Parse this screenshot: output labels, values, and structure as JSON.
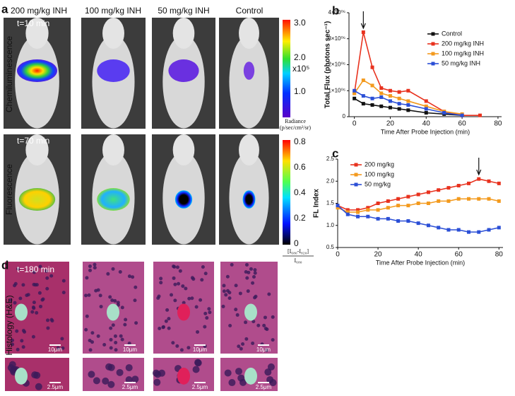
{
  "panel_labels": [
    "a",
    "b",
    "c",
    "d"
  ],
  "columns": [
    "200 mg/kg INH",
    "100 mg/kg INH",
    "50 mg/kg INH",
    "Control"
  ],
  "rows": [
    "Chemiluminescence",
    "Fluorescence",
    "Histology (H&E)"
  ],
  "time_labels": [
    "t=10 min",
    "t=70 min",
    "t=180 min"
  ],
  "radiance_scale": {
    "labels": [
      "3.0",
      "2.0",
      "1.0"
    ],
    "multiplier": "x10⁵",
    "unit": "Radiance",
    "unit_detail": "(p/sec/cm²/sr)"
  },
  "fluorescence_scale": {
    "labels": [
      "0.8",
      "0.6",
      "0.4",
      "0.2",
      "0"
    ],
    "numerator": "[I₆₈₀-I₈₂₀]",
    "denominator": "I₆₈₀"
  },
  "scale_bars": {
    "large": "10μm",
    "small": "2.5μm"
  },
  "chart_data": [
    {
      "type": "line",
      "y_title": "Total Flux (photons sec⁻¹)",
      "x_title": "Time After Probe Injection (min)",
      "x": [
        0,
        5,
        10,
        15,
        20,
        25,
        30,
        40,
        50,
        60,
        70
      ],
      "xlim": [
        -3,
        82
      ],
      "xticks": [
        0,
        20,
        40,
        60,
        80
      ],
      "ylim": [
        0,
        4000000
      ],
      "yticks": [
        0,
        {
          "value": 1000000,
          "label": "1×10⁰⁶"
        },
        {
          "value": 2000000,
          "label": "2×10⁰⁶"
        },
        {
          "value": 3000000,
          "label": "3×10⁰⁶"
        },
        {
          "value": 4000000,
          "label": "4×10⁰⁶"
        }
      ],
      "legend": "upper right",
      "arrow_x": 5,
      "series": [
        {
          "name": "Control",
          "color": "#111111",
          "values": [
            700000,
            500000,
            450000,
            400000,
            350000,
            300000,
            250000,
            150000,
            100000,
            50000,
            null
          ]
        },
        {
          "name": "200 mg/kg INH",
          "color": "#e8321e",
          "values": [
            900000,
            3250000,
            1900000,
            1100000,
            1000000,
            950000,
            1000000,
            600000,
            200000,
            50000,
            50000
          ]
        },
        {
          "name": "100 mg/kg INH",
          "color": "#f39a1e",
          "values": [
            900000,
            1400000,
            1200000,
            900000,
            800000,
            700000,
            600000,
            400000,
            200000,
            100000,
            null
          ]
        },
        {
          "name": "50 mg/kg INH",
          "color": "#2b4fd6",
          "values": [
            1000000,
            800000,
            700000,
            750000,
            600000,
            500000,
            450000,
            300000,
            150000,
            50000,
            null
          ]
        }
      ]
    },
    {
      "type": "line",
      "y_title": "FL Index",
      "x_title": "Time After Probe Injection (min)",
      "x": [
        0,
        5,
        10,
        15,
        20,
        25,
        30,
        35,
        40,
        45,
        50,
        55,
        60,
        65,
        70,
        75,
        80
      ],
      "xlim": [
        0,
        82
      ],
      "xticks": [
        0,
        20,
        40,
        60,
        80
      ],
      "ylim": [
        0.5,
        2.5
      ],
      "yticks": [
        0.5,
        {
          "value": 1,
          "label": "1.0"
        },
        1.5,
        {
          "value": 2,
          "label": "2.0"
        },
        2.5
      ],
      "legend": "upper left",
      "arrow_x": 70,
      "series": [
        {
          "name": "200 mg/kg",
          "color": "#e8321e",
          "values": [
            1.45,
            1.35,
            1.35,
            1.4,
            1.5,
            1.55,
            1.6,
            1.65,
            1.7,
            1.75,
            1.8,
            1.85,
            1.9,
            1.95,
            2.05,
            2.0,
            1.95
          ]
        },
        {
          "name": "100 mg/kg",
          "color": "#f39a1e",
          "values": [
            1.4,
            1.3,
            1.3,
            1.35,
            1.35,
            1.4,
            1.45,
            1.45,
            1.5,
            1.5,
            1.55,
            1.55,
            1.6,
            1.6,
            1.6,
            1.6,
            1.55
          ]
        },
        {
          "name": "50 mg/kg",
          "color": "#2b4fd6",
          "values": [
            1.45,
            1.25,
            1.2,
            1.2,
            1.15,
            1.15,
            1.1,
            1.1,
            1.05,
            1.0,
            0.95,
            0.9,
            0.9,
            0.85,
            0.85,
            0.9,
            0.95
          ]
        }
      ]
    }
  ]
}
